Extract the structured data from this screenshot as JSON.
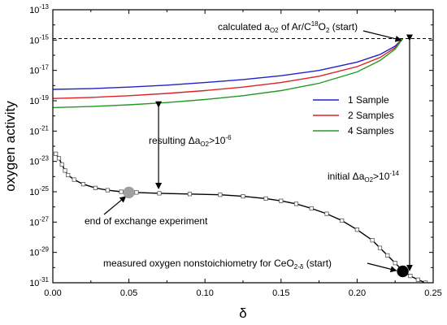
{
  "chart_data": {
    "type": "line",
    "xlabel": "δ",
    "ylabel": "oxygen activity",
    "xlim": [
      0.0,
      0.25
    ],
    "ylim_log10": [
      -31,
      -13
    ],
    "yscale": "log",
    "x_ticks": [
      0.0,
      0.05,
      0.1,
      0.15,
      0.2,
      0.25
    ],
    "x_tick_labels": [
      "0.00",
      "0.05",
      "0.10",
      "0.15",
      "0.20",
      "0.25"
    ],
    "y_tick_exponents": [
      -31,
      -29,
      -27,
      -25,
      -23,
      -21,
      -19,
      -17,
      -15,
      -13
    ],
    "y_tick_base": "10",
    "grid": false,
    "legend_position": "right-upper-middle",
    "series": [
      {
        "name": "1 Sample",
        "color": "#2222cc",
        "x": [
          0.0,
          0.025,
          0.05,
          0.075,
          0.1,
          0.125,
          0.15,
          0.175,
          0.2,
          0.215,
          0.225,
          0.23
        ],
        "log10_y": [
          -18.25,
          -18.2,
          -18.1,
          -17.97,
          -17.8,
          -17.6,
          -17.35,
          -17.0,
          -16.45,
          -15.95,
          -15.4,
          -14.9
        ]
      },
      {
        "name": "2 Samples",
        "color": "#dd2222",
        "x": [
          0.0,
          0.025,
          0.05,
          0.075,
          0.1,
          0.125,
          0.15,
          0.175,
          0.2,
          0.215,
          0.225,
          0.23
        ],
        "log10_y": [
          -18.85,
          -18.78,
          -18.67,
          -18.52,
          -18.33,
          -18.1,
          -17.8,
          -17.38,
          -16.75,
          -16.15,
          -15.5,
          -14.9
        ]
      },
      {
        "name": "4 Samples",
        "color": "#229922",
        "x": [
          0.0,
          0.025,
          0.05,
          0.075,
          0.1,
          0.125,
          0.15,
          0.175,
          0.2,
          0.215,
          0.225,
          0.23
        ],
        "log10_y": [
          -19.45,
          -19.38,
          -19.27,
          -19.12,
          -18.92,
          -18.67,
          -18.33,
          -17.85,
          -17.1,
          -16.35,
          -15.6,
          -14.9
        ]
      },
      {
        "name": "measured",
        "color": "#000000",
        "markers": "open-square",
        "x": [
          0.002,
          0.004,
          0.006,
          0.008,
          0.01,
          0.014,
          0.02,
          0.028,
          0.036,
          0.045,
          0.055,
          0.07,
          0.09,
          0.11,
          0.125,
          0.14,
          0.15,
          0.16,
          0.17,
          0.18,
          0.19,
          0.2,
          0.21,
          0.215,
          0.22,
          0.225,
          0.23,
          0.235,
          0.24,
          0.245
        ],
        "log10_y": [
          -22.5,
          -22.8,
          -23.2,
          -23.6,
          -23.9,
          -24.2,
          -24.5,
          -24.75,
          -24.9,
          -25.0,
          -25.05,
          -25.1,
          -25.15,
          -25.2,
          -25.3,
          -25.45,
          -25.6,
          -25.8,
          -26.1,
          -26.45,
          -26.9,
          -27.5,
          -28.2,
          -28.7,
          -29.2,
          -29.7,
          -30.2,
          -30.55,
          -30.8,
          -31.0
        ]
      }
    ],
    "highlight_points": [
      {
        "label": "end of exchange experiment",
        "x": 0.05,
        "log10_y": -25.05,
        "color": "#a0a0a0"
      },
      {
        "label": "measured oxygen nonstoichiometry for CeO2-δ (start)",
        "x": 0.23,
        "log10_y": -30.25,
        "color": "#000000"
      }
    ],
    "reference_line": {
      "log10_y": -14.9,
      "style": "dashed",
      "color": "#000000"
    },
    "annotations": {
      "calc_text": "calculated a",
      "calc_sub": "O2",
      "calc_mid": " of Ar/C",
      "calc_sup": "18",
      "calc_tail": "O",
      "calc_sub2": "2",
      "calc_end": " (start)",
      "resulting_text": "resulting Δa",
      "resulting_sub": "O2",
      "resulting_mid": ">10",
      "resulting_sup": "-6",
      "initial_text": "initial Δa",
      "initial_sub": "O2",
      "initial_mid": ">10",
      "initial_sup": "-14",
      "end_exchange": "end of exchange experiment",
      "measured_text": "measured oxygen nonstoichiometry for CeO",
      "measured_sub": "2-δ",
      "measured_end": " (start)"
    }
  }
}
